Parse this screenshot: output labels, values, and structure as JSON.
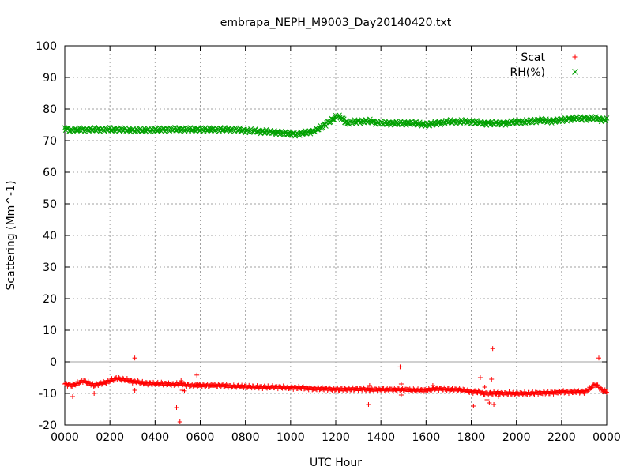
{
  "chart_data": {
    "type": "scatter",
    "title": "embrapa_NEPH_M9003_Day20140420.txt",
    "xlabel": "UTC Hour",
    "ylabel": "Scattering (Mm^-1)",
    "xlim": [
      0,
      24
    ],
    "ylim": [
      -20,
      100
    ],
    "x_ticks": [
      {
        "value": 0,
        "label": "0000"
      },
      {
        "value": 2,
        "label": "0200"
      },
      {
        "value": 4,
        "label": "0400"
      },
      {
        "value": 6,
        "label": "0600"
      },
      {
        "value": 8,
        "label": "0800"
      },
      {
        "value": 10,
        "label": "1000"
      },
      {
        "value": 12,
        "label": "1200"
      },
      {
        "value": 14,
        "label": "1400"
      },
      {
        "value": 16,
        "label": "1600"
      },
      {
        "value": 18,
        "label": "1800"
      },
      {
        "value": 20,
        "label": "2000"
      },
      {
        "value": 22,
        "label": "2200"
      },
      {
        "value": 24,
        "label": "0000"
      }
    ],
    "y_ticks": [
      {
        "value": -20,
        "label": "-20"
      },
      {
        "value": -10,
        "label": "-10"
      },
      {
        "value": 0,
        "label": "0"
      },
      {
        "value": 10,
        "label": "10"
      },
      {
        "value": 20,
        "label": "20"
      },
      {
        "value": 30,
        "label": "30"
      },
      {
        "value": 40,
        "label": "40"
      },
      {
        "value": 50,
        "label": "50"
      },
      {
        "value": 60,
        "label": "60"
      },
      {
        "value": 70,
        "label": "70"
      },
      {
        "value": 80,
        "label": "80"
      },
      {
        "value": 90,
        "label": "90"
      },
      {
        "value": 100,
        "label": "100"
      }
    ],
    "grid": true,
    "zero_line": true,
    "legend_position": "top-right",
    "series": [
      {
        "name": "Scat",
        "marker": "plus",
        "color": "#ff0000",
        "x": [
          0.0,
          0.3,
          0.5,
          0.8,
          1.0,
          1.3,
          1.5,
          1.8,
          2.0,
          2.3,
          2.5,
          2.8,
          3.0,
          3.3,
          3.5,
          3.8,
          4.0,
          4.3,
          4.5,
          4.8,
          5.0,
          5.3,
          5.5,
          5.8,
          6.0,
          6.5,
          7.0,
          7.5,
          8.0,
          8.5,
          9.0,
          9.5,
          10.0,
          10.5,
          11.0,
          11.5,
          12.0,
          12.5,
          13.0,
          13.5,
          14.0,
          14.5,
          15.0,
          15.5,
          16.0,
          16.5,
          17.0,
          17.5,
          18.0,
          18.3,
          18.6,
          18.9,
          19.2,
          19.5,
          20.0,
          20.5,
          21.0,
          21.5,
          22.0,
          22.5,
          23.0,
          23.2,
          23.5,
          23.8,
          24.0
        ],
        "y": [
          -7.0,
          -7.5,
          -7.0,
          -6.0,
          -6.5,
          -7.5,
          -7.0,
          -6.5,
          -6.0,
          -5.2,
          -5.5,
          -5.8,
          -6.2,
          -6.5,
          -6.8,
          -6.8,
          -7.0,
          -6.8,
          -7.0,
          -7.2,
          -7.0,
          -7.2,
          -7.5,
          -7.5,
          -7.5,
          -7.5,
          -7.5,
          -7.8,
          -7.8,
          -8.0,
          -8.0,
          -8.0,
          -8.2,
          -8.2,
          -8.5,
          -8.5,
          -8.7,
          -8.7,
          -8.6,
          -8.8,
          -8.8,
          -8.8,
          -8.8,
          -9.0,
          -9.0,
          -8.5,
          -8.8,
          -8.8,
          -9.5,
          -9.5,
          -10.0,
          -10.0,
          -9.8,
          -10.0,
          -10.0,
          -10.0,
          -9.8,
          -9.8,
          -9.5,
          -9.5,
          -9.5,
          -8.8,
          -7.0,
          -9.0,
          -9.5
        ],
        "outliers": [
          {
            "x": 0.35,
            "y": -11.0
          },
          {
            "x": 1.3,
            "y": -10.0
          },
          {
            "x": 3.1,
            "y": 1.2
          },
          {
            "x": 3.1,
            "y": -9.0
          },
          {
            "x": 4.95,
            "y": -14.5
          },
          {
            "x": 5.1,
            "y": -19.0
          },
          {
            "x": 5.15,
            "y": -6.0
          },
          {
            "x": 5.2,
            "y": -9.0
          },
          {
            "x": 5.3,
            "y": -9.2
          },
          {
            "x": 5.85,
            "y": -4.2
          },
          {
            "x": 5.9,
            "y": -7.0
          },
          {
            "x": 13.45,
            "y": -13.5
          },
          {
            "x": 13.5,
            "y": -7.5
          },
          {
            "x": 14.85,
            "y": -1.6
          },
          {
            "x": 14.9,
            "y": -7.0
          },
          {
            "x": 14.9,
            "y": -10.5
          },
          {
            "x": 16.3,
            "y": -7.5
          },
          {
            "x": 18.1,
            "y": -14.0
          },
          {
            "x": 18.4,
            "y": -5.0
          },
          {
            "x": 18.6,
            "y": -8.0
          },
          {
            "x": 18.7,
            "y": -12.0
          },
          {
            "x": 18.8,
            "y": -13.0
          },
          {
            "x": 18.9,
            "y": -5.5
          },
          {
            "x": 18.95,
            "y": 4.2
          },
          {
            "x": 19.0,
            "y": -13.5
          },
          {
            "x": 19.1,
            "y": -10.0
          },
          {
            "x": 19.2,
            "y": -11.0
          },
          {
            "x": 23.65,
            "y": 1.2
          }
        ]
      },
      {
        "name": "RH(%)",
        "marker": "cross",
        "color": "#00a000",
        "x": [
          0.0,
          0.3,
          0.5,
          0.8,
          1.0,
          1.5,
          2.0,
          2.5,
          3.0,
          3.5,
          4.0,
          4.5,
          5.0,
          5.5,
          6.0,
          6.5,
          7.0,
          7.5,
          8.0,
          8.5,
          9.0,
          9.5,
          10.0,
          10.3,
          10.6,
          11.0,
          11.3,
          11.6,
          11.9,
          12.1,
          12.3,
          12.5,
          12.8,
          13.0,
          13.5,
          14.0,
          14.5,
          15.0,
          15.5,
          16.0,
          16.5,
          17.0,
          17.5,
          18.0,
          18.5,
          19.0,
          19.5,
          20.0,
          20.5,
          21.0,
          21.5,
          22.0,
          22.5,
          23.0,
          23.5,
          24.0
        ],
        "y": [
          74.0,
          73.2,
          73.5,
          73.5,
          73.5,
          73.5,
          73.5,
          73.5,
          73.3,
          73.3,
          73.3,
          73.5,
          73.5,
          73.5,
          73.5,
          73.5,
          73.5,
          73.5,
          73.2,
          73.0,
          72.8,
          72.5,
          72.2,
          72.0,
          72.5,
          73.0,
          74.0,
          75.5,
          77.0,
          77.8,
          77.0,
          75.5,
          76.0,
          76.0,
          76.2,
          75.5,
          75.5,
          75.5,
          75.5,
          75.0,
          75.5,
          76.0,
          76.0,
          76.0,
          75.5,
          75.5,
          75.5,
          76.0,
          76.0,
          76.5,
          76.2,
          76.5,
          77.0,
          77.0,
          77.0,
          76.5
        ]
      }
    ]
  }
}
